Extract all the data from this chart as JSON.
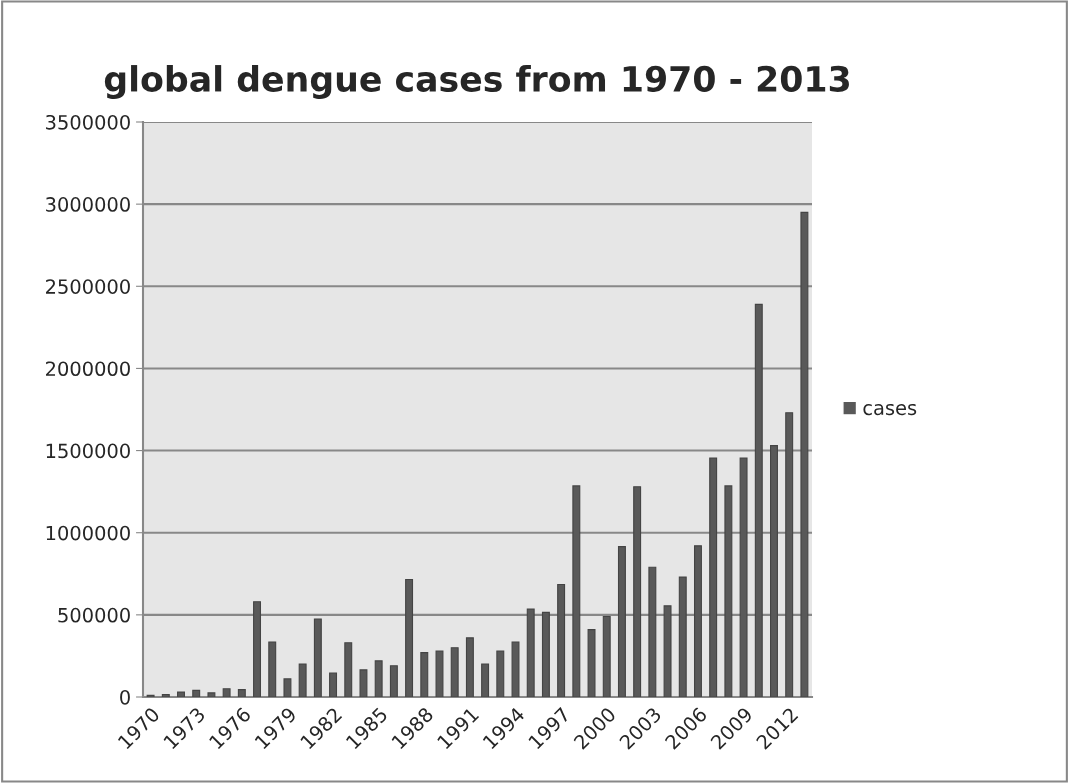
{
  "chart_data": {
    "type": "bar",
    "title": "global dengue cases from 1970 - 2013",
    "categories": [
      "1970",
      null,
      null,
      "1973",
      null,
      null,
      "1976",
      null,
      null,
      "1979",
      null,
      null,
      "1982",
      null,
      null,
      "1985",
      null,
      null,
      "1988",
      null,
      null,
      "1991",
      null,
      null,
      "1994",
      null,
      null,
      "1997",
      null,
      null,
      "2000",
      null,
      null,
      "2003",
      null,
      null,
      "2006",
      null,
      null,
      "2009",
      null,
      null,
      "2012",
      null
    ],
    "series": [
      {
        "name": "cases",
        "color": "#595959",
        "values": [
          10000,
          15000,
          30000,
          40000,
          25000,
          50000,
          45000,
          580000,
          335000,
          110000,
          200000,
          475000,
          145000,
          330000,
          165000,
          220000,
          190000,
          715000,
          270000,
          280000,
          300000,
          360000,
          200000,
          280000,
          335000,
          535000,
          515000,
          685000,
          1285000,
          410000,
          490000,
          915000,
          1280000,
          790000,
          555000,
          730000,
          920000,
          1455000,
          1285000,
          1455000,
          2390000,
          1530000,
          1730000,
          2950000
        ]
      }
    ],
    "ylim": [
      0,
      3500000
    ],
    "yticks": [
      0,
      500000,
      1000000,
      1500000,
      2000000,
      2500000,
      3000000,
      3500000
    ],
    "grid": "y",
    "legend": "right"
  }
}
